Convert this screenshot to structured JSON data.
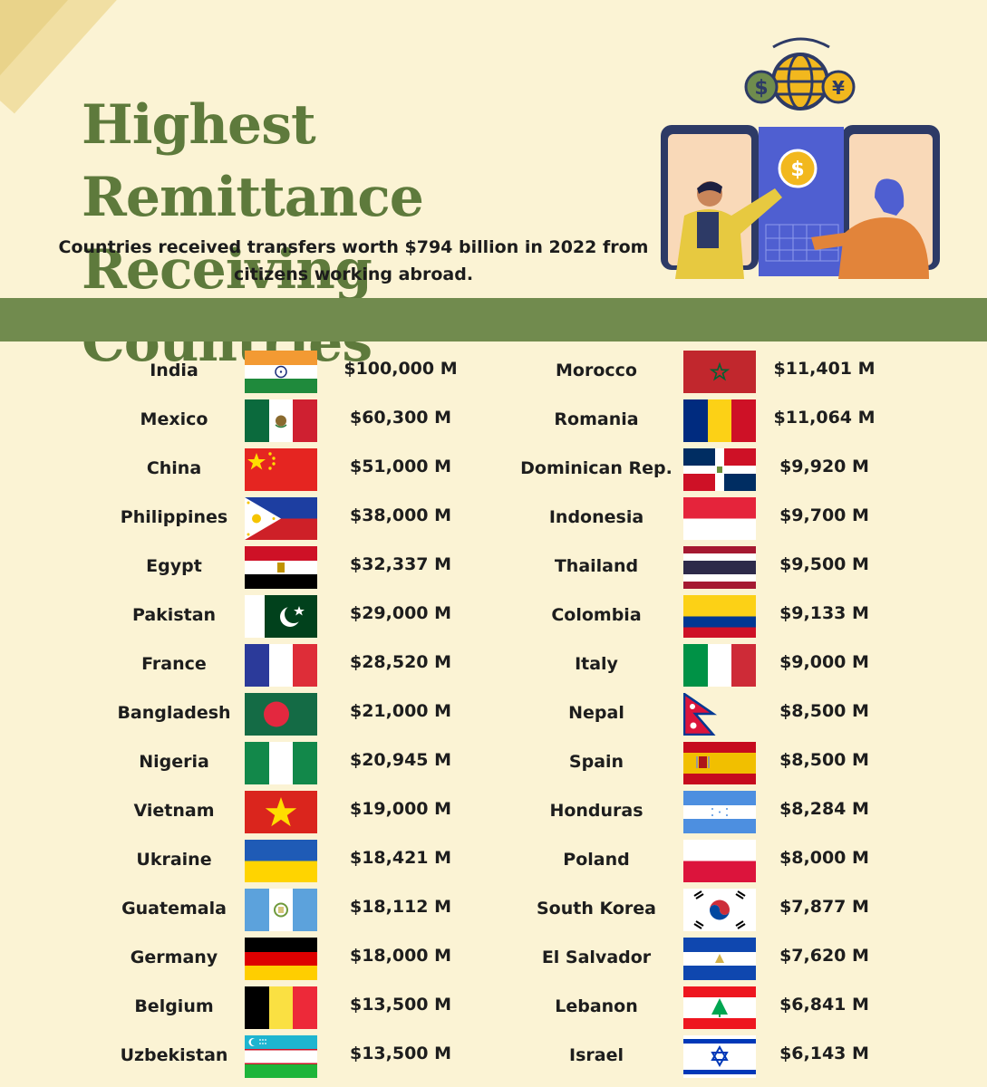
{
  "header": {
    "title_line1": "Highest Remittance",
    "title_line2": "Receiving Countries",
    "subtitle_line1": "Countries received transfers worth $794 billion in 2022 from",
    "subtitle_line2": "citizens working abroad."
  },
  "colors": {
    "background": "#fbf3d4",
    "accent_green": "#718b4e",
    "title_green": "#5e7a3c"
  },
  "left_column": [
    {
      "country": "India",
      "amount": "$100,000 M",
      "flag": "india-flag"
    },
    {
      "country": "Mexico",
      "amount": "$60,300 M",
      "flag": "mexico-flag"
    },
    {
      "country": "China",
      "amount": "$51,000 M",
      "flag": "china-flag"
    },
    {
      "country": "Philippines",
      "amount": "$38,000 M",
      "flag": "philippines-flag"
    },
    {
      "country": "Egypt",
      "amount": "$32,337 M",
      "flag": "egypt-flag"
    },
    {
      "country": "Pakistan",
      "amount": "$29,000 M",
      "flag": "pakistan-flag"
    },
    {
      "country": "France",
      "amount": "$28,520 M",
      "flag": "france-flag"
    },
    {
      "country": "Bangladesh",
      "amount": "$21,000 M",
      "flag": "bangladesh-flag"
    },
    {
      "country": "Nigeria",
      "amount": "$20,945 M",
      "flag": "nigeria-flag"
    },
    {
      "country": "Vietnam",
      "amount": "$19,000 M",
      "flag": "vietnam-flag"
    },
    {
      "country": "Ukraine",
      "amount": "$18,421 M",
      "flag": "ukraine-flag"
    },
    {
      "country": "Guatemala",
      "amount": "$18,112 M",
      "flag": "guatemala-flag"
    },
    {
      "country": "Germany",
      "amount": "$18,000 M",
      "flag": "germany-flag"
    },
    {
      "country": "Belgium",
      "amount": "$13,500 M",
      "flag": "belgium-flag"
    },
    {
      "country": "Uzbekistan",
      "amount": "$13,500 M",
      "flag": "uzbekistan-flag"
    }
  ],
  "right_column": [
    {
      "country": "Morocco",
      "amount": "$11,401 M",
      "flag": "morocco-flag"
    },
    {
      "country": "Romania",
      "amount": "$11,064 M",
      "flag": "romania-flag"
    },
    {
      "country": "Dominican Rep.",
      "amount": "$9,920 M",
      "flag": "dominican-republic-flag"
    },
    {
      "country": "Indonesia",
      "amount": "$9,700 M",
      "flag": "indonesia-flag"
    },
    {
      "country": "Thailand",
      "amount": "$9,500 M",
      "flag": "thailand-flag"
    },
    {
      "country": "Colombia",
      "amount": "$9,133 M",
      "flag": "colombia-flag"
    },
    {
      "country": "Italy",
      "amount": "$9,000 M",
      "flag": "italy-flag"
    },
    {
      "country": "Nepal",
      "amount": "$8,500 M",
      "flag": "nepal-flag"
    },
    {
      "country": "Spain",
      "amount": "$8,500 M",
      "flag": "spain-flag"
    },
    {
      "country": "Honduras",
      "amount": "$8,284 M",
      "flag": "honduras-flag"
    },
    {
      "country": "Poland",
      "amount": "$8,000 M",
      "flag": "poland-flag"
    },
    {
      "country": "South Korea",
      "amount": "$7,877 M",
      "flag": "south-korea-flag"
    },
    {
      "country": "El Salvador",
      "amount": "$7,620 M",
      "flag": "el-salvador-flag"
    },
    {
      "country": "Lebanon",
      "amount": "$6,841 M",
      "flag": "lebanon-flag"
    },
    {
      "country": "Israel",
      "amount": "$6,143 M",
      "flag": "israel-flag"
    }
  ]
}
